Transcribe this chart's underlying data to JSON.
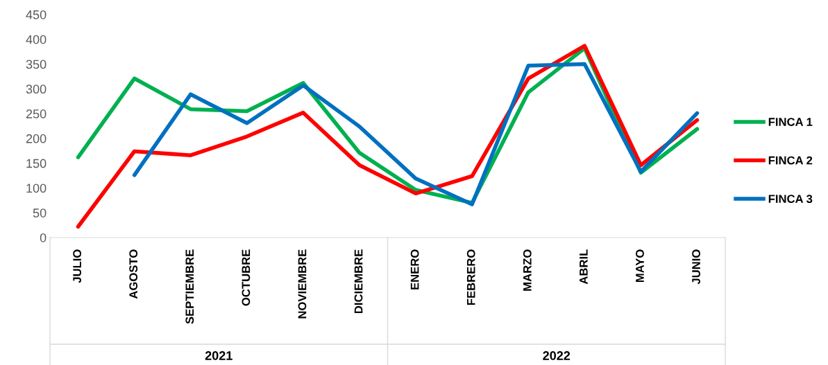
{
  "chart_data": {
    "type": "line",
    "categories": [
      "JULIO",
      "AGOSTO",
      "SEPTIEMBRE",
      "OCTUBRE",
      "NOVIEMBRE",
      "DICIEMBRE",
      "ENERO",
      "FEBRERO",
      "MARZO",
      "ABRIL",
      "MAYO",
      "JUNIO"
    ],
    "series": [
      {
        "name": "FINCA 1",
        "color": "#00b050",
        "values": [
          162,
          321,
          259,
          255,
          312,
          171,
          96,
          70,
          293,
          382,
          131,
          219
        ]
      },
      {
        "name": "FINCA 2",
        "color": "#ff0000",
        "values": [
          22,
          174,
          166,
          204,
          252,
          146,
          89,
          124,
          321,
          387,
          146,
          237
        ]
      },
      {
        "name": "FINCA 3",
        "color": "#0070c0",
        "values": [
          null,
          126,
          289,
          231,
          307,
          224,
          119,
          67,
          347,
          350,
          133,
          251
        ]
      }
    ],
    "annotations": [
      "2021",
      "2022"
    ],
    "ylim": [
      0,
      450
    ],
    "yticks": [
      0,
      50,
      100,
      150,
      200,
      250,
      300,
      350,
      400,
      450
    ],
    "grid": false,
    "legend": "right",
    "marker": "none",
    "line_style": "solid"
  }
}
